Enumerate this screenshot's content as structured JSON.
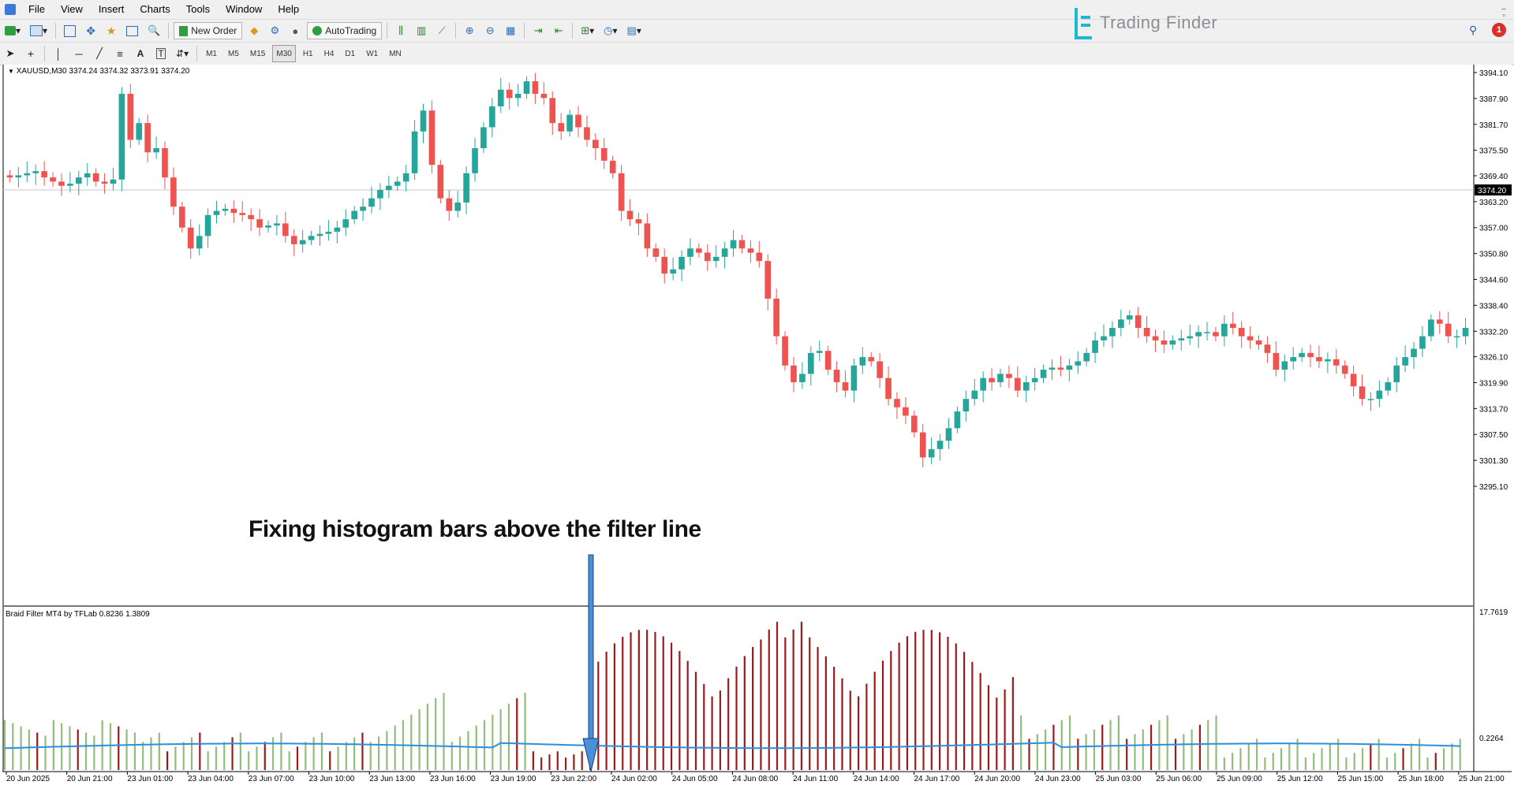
{
  "menu": [
    "File",
    "View",
    "Insert",
    "Charts",
    "Tools",
    "Window",
    "Help"
  ],
  "window_controls": [
    "_",
    "▫",
    "×"
  ],
  "toolbar": {
    "new_order_label": "New Order",
    "autotrading_label": "AutoTrading",
    "timeframes": [
      "M1",
      "M5",
      "M15",
      "M30",
      "H1",
      "H4",
      "D1",
      "W1",
      "MN"
    ],
    "active_timeframe": "M30"
  },
  "brand": {
    "logo_text": "Trading Finder",
    "accent": "#1eb9d0"
  },
  "notifications": {
    "count": "1",
    "color": "#d9302c"
  },
  "chart": {
    "symbol_label": "XAUUSD,M30",
    "ohlc_label": "3374.24 3374.32 3373.91 3374.20",
    "current_price_label": "3374.20",
    "price_ticks": [
      "3394.10",
      "3387.90",
      "3381.70",
      "3375.50",
      "3369.40",
      "3363.20",
      "3357.00",
      "3350.80",
      "3344.60",
      "3338.40",
      "3332.20",
      "3326.10",
      "3319.90",
      "3313.70",
      "3307.50",
      "3301.30",
      "3295.10"
    ],
    "colors": {
      "bull": "#26a69a",
      "bear": "#ef5350",
      "hist_green": "#92bd7a",
      "hist_red": "#9b1b1b",
      "filter": "#2b8ee0"
    }
  },
  "indicator": {
    "label": "Braid Filter MT4 by TFLab 0.8236 1.3809",
    "top_tick": "17.7619",
    "bottom_tick": "0.2264"
  },
  "time_axis": [
    "20 Jun 2025",
    "20 Jun 21:00",
    "23 Jun 01:00",
    "23 Jun 04:00",
    "23 Jun 07:00",
    "23 Jun 10:00",
    "23 Jun 13:00",
    "23 Jun 16:00",
    "23 Jun 19:00",
    "23 Jun 22:00",
    "24 Jun 02:00",
    "24 Jun 05:00",
    "24 Jun 08:00",
    "24 Jun 11:00",
    "24 Jun 14:00",
    "24 Jun 17:00",
    "24 Jun 20:00",
    "24 Jun 23:00",
    "25 Jun 03:00",
    "25 Jun 06:00",
    "25 Jun 09:00",
    "25 Jun 12:00",
    "25 Jun 15:00",
    "25 Jun 18:00",
    "25 Jun 21:00"
  ],
  "annotation": "Fixing histogram bars above the filter line"
}
